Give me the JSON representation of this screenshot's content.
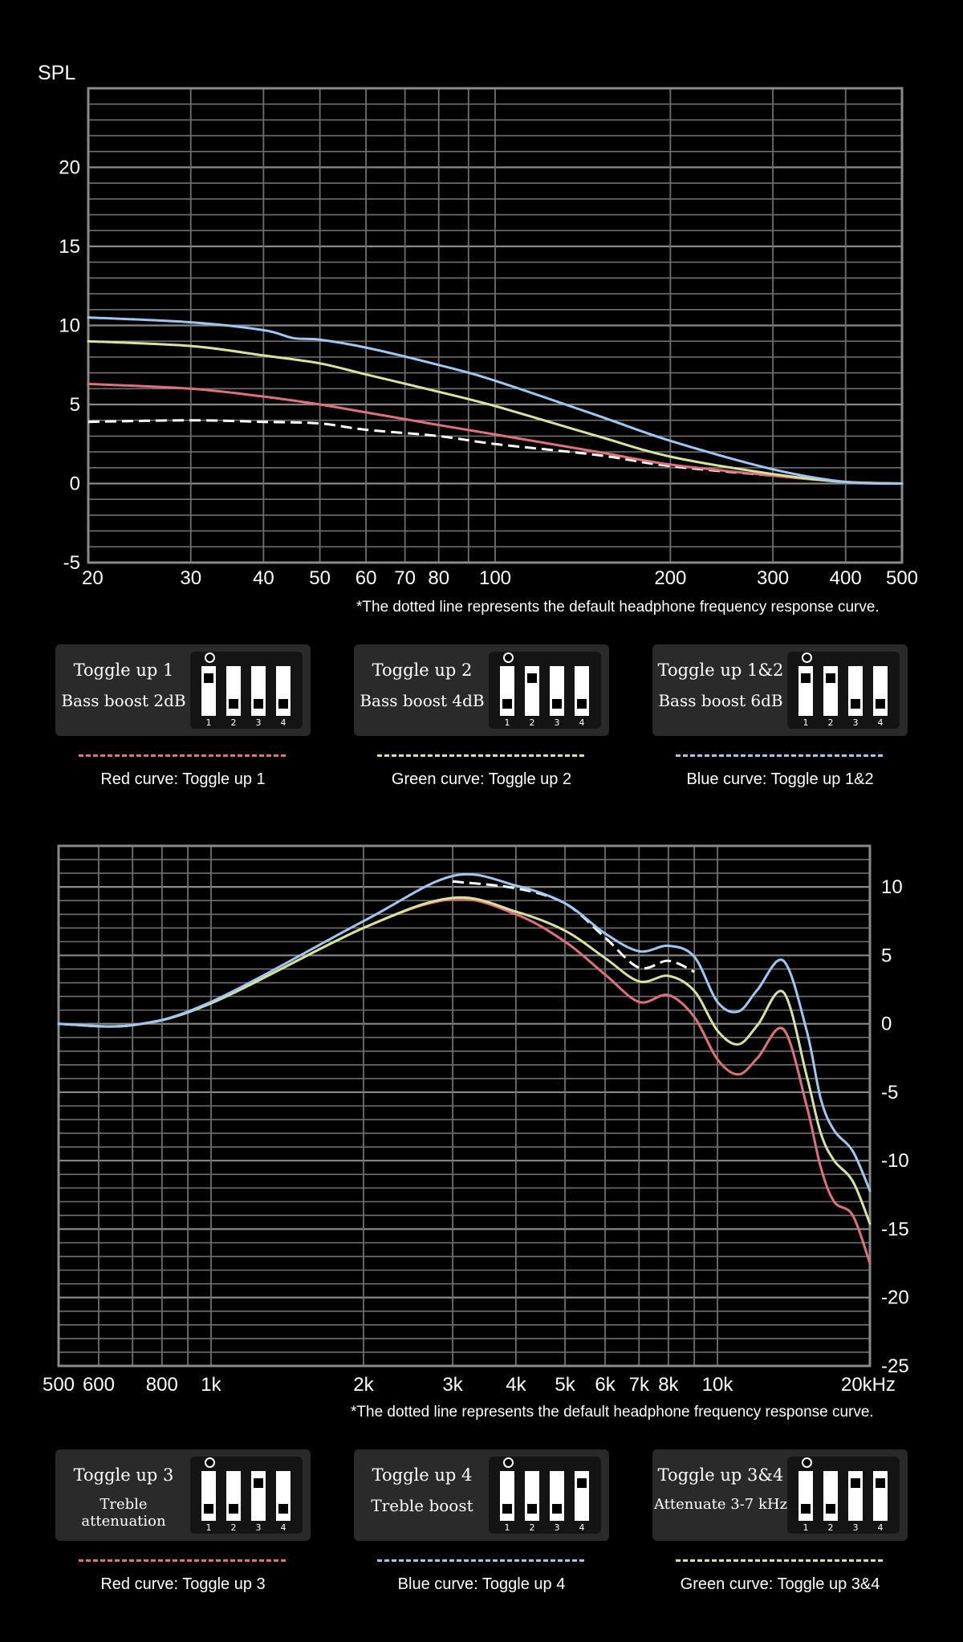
{
  "chart_data": [
    {
      "type": "line",
      "ylabel": "SPL",
      "xscale": "log",
      "xlim": [
        20,
        500
      ],
      "ylim": [
        -5,
        25
      ],
      "x_ticks": [
        20,
        30,
        40,
        50,
        60,
        70,
        80,
        100,
        200,
        300,
        400,
        500
      ],
      "x_tick_labels": [
        "20",
        "30",
        "40",
        "50",
        "60",
        "70",
        "80",
        "100",
        "200",
        "300",
        "400",
        "500"
      ],
      "y_ticks": [
        -5,
        0,
        5,
        10,
        15,
        20
      ],
      "y_tick_labels": [
        "-5",
        "0",
        "5",
        "10",
        "15",
        "20"
      ],
      "grid": true,
      "note": "*The dotted line represents the default headphone frequency response curve.",
      "series": [
        {
          "color": "#ffffff",
          "style": "dashed",
          "points": [
            [
              20,
              3.9
            ],
            [
              30,
              4.0
            ],
            [
              40,
              3.9
            ],
            [
              50,
              3.8
            ],
            [
              60,
              3.4
            ],
            [
              80,
              3.0
            ],
            [
              100,
              2.5
            ],
            [
              150,
              1.8
            ],
            [
              200,
              1.1
            ],
            [
              300,
              0.5
            ],
            [
              400,
              0.1
            ],
            [
              500,
              0.0
            ]
          ]
        },
        {
          "color": "#e0707a",
          "style": "solid",
          "points": [
            [
              20,
              6.3
            ],
            [
              30,
              6.0
            ],
            [
              40,
              5.5
            ],
            [
              50,
              5.0
            ],
            [
              60,
              4.5
            ],
            [
              80,
              3.7
            ],
            [
              100,
              3.1
            ],
            [
              150,
              2.0
            ],
            [
              200,
              1.2
            ],
            [
              300,
              0.5
            ],
            [
              400,
              0.1
            ],
            [
              500,
              0.0
            ]
          ]
        },
        {
          "color": "#d7e59a",
          "style": "solid",
          "points": [
            [
              20,
              9.0
            ],
            [
              30,
              8.7
            ],
            [
              40,
              8.1
            ],
            [
              50,
              7.6
            ],
            [
              60,
              6.9
            ],
            [
              80,
              5.8
            ],
            [
              100,
              4.9
            ],
            [
              150,
              3.0
            ],
            [
              200,
              1.7
            ],
            [
              300,
              0.6
            ],
            [
              400,
              0.1
            ],
            [
              500,
              0.0
            ]
          ]
        },
        {
          "color": "#9cc8f2",
          "style": "solid",
          "points": [
            [
              20,
              10.5
            ],
            [
              30,
              10.2
            ],
            [
              40,
              9.7
            ],
            [
              45,
              9.2
            ],
            [
              50,
              9.1
            ],
            [
              60,
              8.6
            ],
            [
              80,
              7.5
            ],
            [
              100,
              6.5
            ],
            [
              150,
              4.3
            ],
            [
              200,
              2.7
            ],
            [
              300,
              0.9
            ],
            [
              400,
              0.1
            ],
            [
              500,
              0.0
            ]
          ]
        }
      ]
    },
    {
      "type": "line",
      "xscale": "log",
      "xlim": [
        500,
        20000
      ],
      "ylim": [
        -25,
        13
      ],
      "x_ticks": [
        500,
        600,
        800,
        1000,
        2000,
        3000,
        4000,
        5000,
        6000,
        7000,
        8000,
        10000,
        20000
      ],
      "x_tick_labels": [
        "500",
        "600",
        "800",
        "1k",
        "2k",
        "3k",
        "4k",
        "5k",
        "6k",
        "7k",
        "8k",
        "10k",
        "20kHz"
      ],
      "y_ticks": [
        10,
        5,
        0,
        -5,
        -10,
        -15,
        -20,
        -25
      ],
      "y_tick_labels": [
        "10",
        "5",
        "0",
        "-5",
        "-10",
        "-15",
        "-20",
        "-25"
      ],
      "grid": true,
      "note": "*The dotted line represents the default headphone frequency response curve.",
      "series": [
        {
          "color": "#ffffff",
          "style": "dashed",
          "points": [
            [
              3000,
              10.4
            ],
            [
              4000,
              9.9
            ],
            [
              5000,
              8.8
            ],
            [
              6000,
              6.3
            ],
            [
              7000,
              4.1
            ],
            [
              8000,
              4.6
            ],
            [
              9000,
              3.8
            ]
          ]
        },
        {
          "color": "#e0707a",
          "style": "solid",
          "points": [
            [
              500,
              0.0
            ],
            [
              700,
              -0.1
            ],
            [
              1000,
              1.5
            ],
            [
              2000,
              7.0
            ],
            [
              3000,
              9.1
            ],
            [
              4000,
              8.0
            ],
            [
              5000,
              6.0
            ],
            [
              6000,
              3.6
            ],
            [
              7000,
              1.6
            ],
            [
              8000,
              2.1
            ],
            [
              9000,
              0.5
            ],
            [
              10000,
              -2.6
            ],
            [
              11000,
              -3.7
            ],
            [
              12000,
              -2.5
            ],
            [
              13500,
              -0.4
            ],
            [
              15000,
              -6.0
            ],
            [
              16000,
              -10.5
            ],
            [
              17000,
              -13.0
            ],
            [
              18500,
              -14.0
            ],
            [
              20000,
              -17.5
            ]
          ]
        },
        {
          "color": "#d7e59a",
          "style": "solid",
          "points": [
            [
              500,
              0.0
            ],
            [
              700,
              -0.1
            ],
            [
              1000,
              1.5
            ],
            [
              2000,
              7.0
            ],
            [
              3000,
              9.2
            ],
            [
              4000,
              8.2
            ],
            [
              5000,
              6.8
            ],
            [
              6000,
              4.8
            ],
            [
              7000,
              3.1
            ],
            [
              8000,
              3.5
            ],
            [
              9000,
              2.4
            ],
            [
              10000,
              -0.5
            ],
            [
              11000,
              -1.5
            ],
            [
              12000,
              -0.1
            ],
            [
              13500,
              2.3
            ],
            [
              15000,
              -3.8
            ],
            [
              16000,
              -8.0
            ],
            [
              17000,
              -10.0
            ],
            [
              18500,
              -11.5
            ],
            [
              20000,
              -14.6
            ]
          ]
        },
        {
          "color": "#9cc8f2",
          "style": "solid",
          "points": [
            [
              500,
              0.0
            ],
            [
              700,
              -0.1
            ],
            [
              1000,
              1.6
            ],
            [
              2000,
              7.5
            ],
            [
              3000,
              10.8
            ],
            [
              4000,
              10.1
            ],
            [
              5000,
              8.8
            ],
            [
              6000,
              6.6
            ],
            [
              7000,
              5.3
            ],
            [
              8000,
              5.7
            ],
            [
              9000,
              4.9
            ],
            [
              10000,
              1.6
            ],
            [
              11000,
              0.9
            ],
            [
              12000,
              2.5
            ],
            [
              13500,
              4.6
            ],
            [
              15000,
              -0.5
            ],
            [
              16000,
              -5.5
            ],
            [
              17000,
              -7.8
            ],
            [
              18500,
              -9.3
            ],
            [
              20000,
              -12.2
            ]
          ]
        }
      ]
    }
  ],
  "toggles_bass": [
    {
      "title": "Toggle up 1",
      "desc": "Bass boost 2dB",
      "switches": [
        true,
        false,
        false,
        false
      ],
      "nums": [
        "1",
        "2",
        "3",
        "4"
      ],
      "color": "#e0707a",
      "caption": "Red curve: Toggle up 1"
    },
    {
      "title": "Toggle up 2",
      "desc": "Bass boost 4dB",
      "switches": [
        false,
        true,
        false,
        false
      ],
      "nums": [
        "1",
        "2",
        "3",
        "4"
      ],
      "color": "#d7e59a",
      "caption": "Green curve: Toggle up 2"
    },
    {
      "title": "Toggle up 1&2",
      "desc": "Bass boost 6dB",
      "switches": [
        true,
        true,
        false,
        false
      ],
      "nums": [
        "1",
        "2",
        "3",
        "4"
      ],
      "color": "#9cc8f2",
      "caption": "Blue curve: Toggle up 1&2"
    }
  ],
  "toggles_treble": [
    {
      "title": "Toggle up 3",
      "desc": "Treble attenuation",
      "switches": [
        false,
        false,
        true,
        false
      ],
      "nums": [
        "1",
        "2",
        "3",
        "4"
      ],
      "color": "#e0707a",
      "caption": "Red curve: Toggle up 3"
    },
    {
      "title": "Toggle up 4",
      "desc": "Treble boost",
      "switches": [
        false,
        false,
        false,
        true
      ],
      "nums": [
        "1",
        "2",
        "3",
        "4"
      ],
      "color": "#9cc8f2",
      "caption": "Blue curve: Toggle up 4"
    },
    {
      "title": "Toggle up 3&4",
      "desc": "Attenuate 3-7 kHz",
      "switches": [
        false,
        false,
        true,
        true
      ],
      "nums": [
        "1",
        "2",
        "3",
        "4"
      ],
      "color": "#d7e59a",
      "caption": "Green curve: Toggle up 3&4"
    }
  ]
}
